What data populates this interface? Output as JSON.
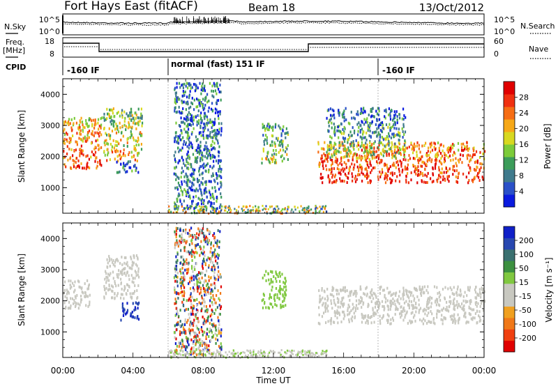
{
  "header": {
    "station": "Fort Hays East (fitACF)",
    "beam": "Beam 18",
    "date": "13/Oct/2012"
  },
  "top_panels": {
    "nsky_label": "N.Sky",
    "nsky_ticks": [
      "10^5",
      "10^0"
    ],
    "nsearch_label": "N.Search",
    "nsearch_ticks": [
      "10^5",
      "10^0"
    ],
    "freq_label": "Freq.",
    "freq_unit": "[MHz]",
    "freq_ticks": [
      "18",
      "8"
    ],
    "nave_label": "Nave",
    "nave_ticks": [
      "60",
      "0"
    ],
    "cpid_label": "CPID",
    "cpid_segments": [
      {
        "label": "-160 IF",
        "start_hour": 0,
        "end_hour": 6
      },
      {
        "label": "normal (fast) 151 IF",
        "start_hour": 6,
        "end_hour": 18
      },
      {
        "label": "-160 IF",
        "start_hour": 18,
        "end_hour": 24
      }
    ]
  },
  "x_axis": {
    "label": "Time UT",
    "tick_labels": [
      "00:00",
      "04:00",
      "08:00",
      "12:00",
      "16:00",
      "20:00",
      "00:00"
    ]
  },
  "power_panel": {
    "ylabel": "Slant Range [km]",
    "ytick_labels": [
      "1000",
      "2000",
      "3000",
      "4000"
    ],
    "colorbar_label": "Power [dB]",
    "colorbar_ticks": [
      "4",
      "8",
      "12",
      "16",
      "20",
      "24",
      "28"
    ],
    "colors": [
      "#0a1adf",
      "#2a50c8",
      "#3f7a8c",
      "#3c9c5a",
      "#7ccb3a",
      "#d8d820",
      "#f6a818",
      "#f66d14",
      "#f03010",
      "#e00000"
    ]
  },
  "velocity_panel": {
    "ylabel": "Slant Range [km]",
    "ytick_labels": [
      "1000",
      "2000",
      "3000",
      "4000"
    ],
    "colorbar_label": "Velocity [m s⁻¹]",
    "colorbar_ticks": [
      "200",
      "100",
      "50",
      "15",
      "-15",
      "-50",
      "-100",
      "-200"
    ],
    "colors": [
      "#1020c8",
      "#2848b0",
      "#3a7070",
      "#3c9040",
      "#80c840",
      "#c8c8c0",
      "#c8c8c0",
      "#f0a020",
      "#f07818",
      "#f04010",
      "#e00000"
    ]
  },
  "chart_data": [
    {
      "type": "heatmap",
      "name": "Power",
      "x_range_hours": [
        0,
        24
      ],
      "y_range_km": [
        180,
        4500
      ],
      "z_range_dB": [
        0,
        30
      ],
      "regions": [
        {
          "t": [
            0.0,
            2.2
          ],
          "r": [
            1650,
            3300
          ],
          "value_dB": 22
        },
        {
          "t": [
            2.3,
            4.5
          ],
          "r": [
            1900,
            3600
          ],
          "value_dB": 16
        },
        {
          "t": [
            3.0,
            4.3
          ],
          "r": [
            1500,
            1900
          ],
          "value_dB": 6
        },
        {
          "t": [
            6.3,
            9.0
          ],
          "r": [
            300,
            4400
          ],
          "value_dB": 5
        },
        {
          "t": [
            11.3,
            12.8
          ],
          "r": [
            1800,
            3100
          ],
          "value_dB": 12
        },
        {
          "t": [
            14.5,
            24.0
          ],
          "r": [
            1200,
            2500
          ],
          "value_dB": 24
        },
        {
          "t": [
            15.0,
            19.5
          ],
          "r": [
            2000,
            3600
          ],
          "value_dB": 10
        }
      ]
    },
    {
      "type": "heatmap",
      "name": "Velocity",
      "x_range_hours": [
        0,
        24
      ],
      "y_range_km": [
        180,
        4500
      ],
      "z_range_ms": [
        -250,
        250
      ],
      "regions": [
        {
          "t": [
            0.0,
            1.5
          ],
          "r": [
            1800,
            2700
          ],
          "value_ms": 0
        },
        {
          "t": [
            2.3,
            4.3
          ],
          "r": [
            2100,
            3500
          ],
          "value_ms": -15
        },
        {
          "t": [
            3.2,
            4.3
          ],
          "r": [
            1400,
            2000
          ],
          "value_ms": 200
        },
        {
          "t": [
            6.3,
            9.0
          ],
          "r": [
            300,
            4400
          ],
          "value_ms": 0
        },
        {
          "t": [
            11.3,
            12.7
          ],
          "r": [
            1800,
            3000
          ],
          "value_ms": 40
        },
        {
          "t": [
            14.5,
            24.0
          ],
          "r": [
            1300,
            2500
          ],
          "value_ms": 0
        }
      ]
    }
  ]
}
